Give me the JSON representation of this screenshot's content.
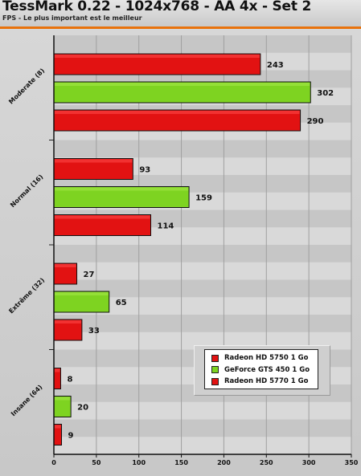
{
  "header": {
    "title": "TessMark 0.22 - 1024x768 - AA 4x - Set 2",
    "subtitle": "FPS - Le plus important est le meilleur"
  },
  "colors": {
    "accent": "#e8720c",
    "red": "#e21212",
    "green": "#7ed321"
  },
  "chart_data": {
    "type": "bar",
    "orientation": "horizontal",
    "title": "TessMark 0.22 - 1024x768 - AA 4x - Set 2",
    "subtitle": "FPS - Le plus important est le meilleur",
    "categories": [
      "Moderate (8)",
      "Normal (16)",
      "Extrême (32)",
      "Insane (64)"
    ],
    "series": [
      {
        "name": "Radeon HD 5750 1 Go",
        "color": "#e21212",
        "values": [
          243,
          93,
          27,
          8
        ]
      },
      {
        "name": "GeForce GTS 450 1 Go",
        "color": "#7ed321",
        "values": [
          302,
          159,
          65,
          20
        ]
      },
      {
        "name": "Radeon HD 5770 1 Go",
        "color": "#e21212",
        "values": [
          290,
          114,
          33,
          9
        ]
      }
    ],
    "xlim": [
      0,
      350
    ],
    "xticks": [
      "0",
      "50",
      "100",
      "150",
      "200",
      "250",
      "300",
      "350"
    ],
    "grid": true,
    "legend_position": "bottom-right"
  }
}
